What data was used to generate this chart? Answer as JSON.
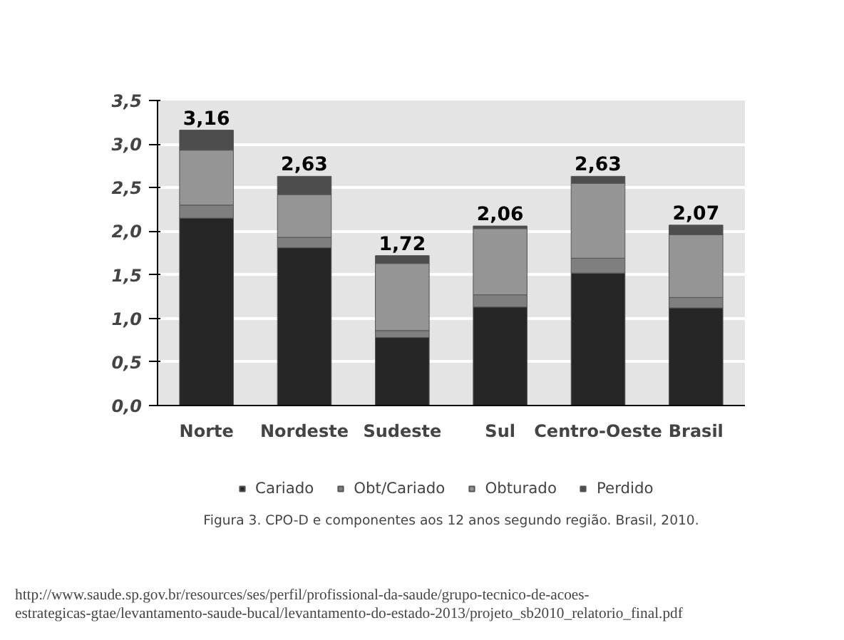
{
  "chart_data": {
    "type": "bar",
    "stacked": true,
    "categories": [
      "Norte",
      "Nordeste",
      "Sudeste",
      "Sul",
      "Centro-Oeste",
      "Brasil"
    ],
    "series": [
      {
        "name": "Cariado",
        "color": "#262626",
        "values": [
          2.15,
          1.81,
          0.78,
          1.13,
          1.52,
          1.12
        ]
      },
      {
        "name": "Obt/Cariado",
        "color": "#7f7f7f",
        "values": [
          0.15,
          0.12,
          0.08,
          0.14,
          0.17,
          0.12
        ]
      },
      {
        "name": "Obturado",
        "color": "#959595",
        "values": [
          0.63,
          0.49,
          0.77,
          0.76,
          0.86,
          0.72
        ]
      },
      {
        "name": "Perdido",
        "color": "#4d4d4d",
        "values": [
          0.23,
          0.21,
          0.09,
          0.03,
          0.08,
          0.11
        ]
      }
    ],
    "totals": [
      "3,16",
      "2,63",
      "1,72",
      "2,06",
      "2,63",
      "2,07"
    ],
    "ylim": [
      0,
      3.5
    ],
    "yticks": [
      {
        "value": 0,
        "label": "0,0"
      },
      {
        "value": 0.5,
        "label": "0,5"
      },
      {
        "value": 1,
        "label": "1,0"
      },
      {
        "value": 1.5,
        "label": "1,5"
      },
      {
        "value": 2,
        "label": "2,0"
      },
      {
        "value": 2.5,
        "label": "2,5"
      },
      {
        "value": 3,
        "label": "3,0"
      },
      {
        "value": 3.5,
        "label": "3,5"
      }
    ],
    "grid": "y",
    "legend": "bottom",
    "annotations": [
      "Figura 3. CPO-D e componentes aos 12 anos segundo região. Brasil, 2010.",
      "http://www.saude.sp.gov.br/resources/ses/perfil/profissional-da-saude/grupo-tecnico-de-acoes-estrategicas-gtae/levantamento-saude-bucal/levantamento-do-estado-2013/projeto_sb2010_relatorio_final.pdf"
    ]
  }
}
